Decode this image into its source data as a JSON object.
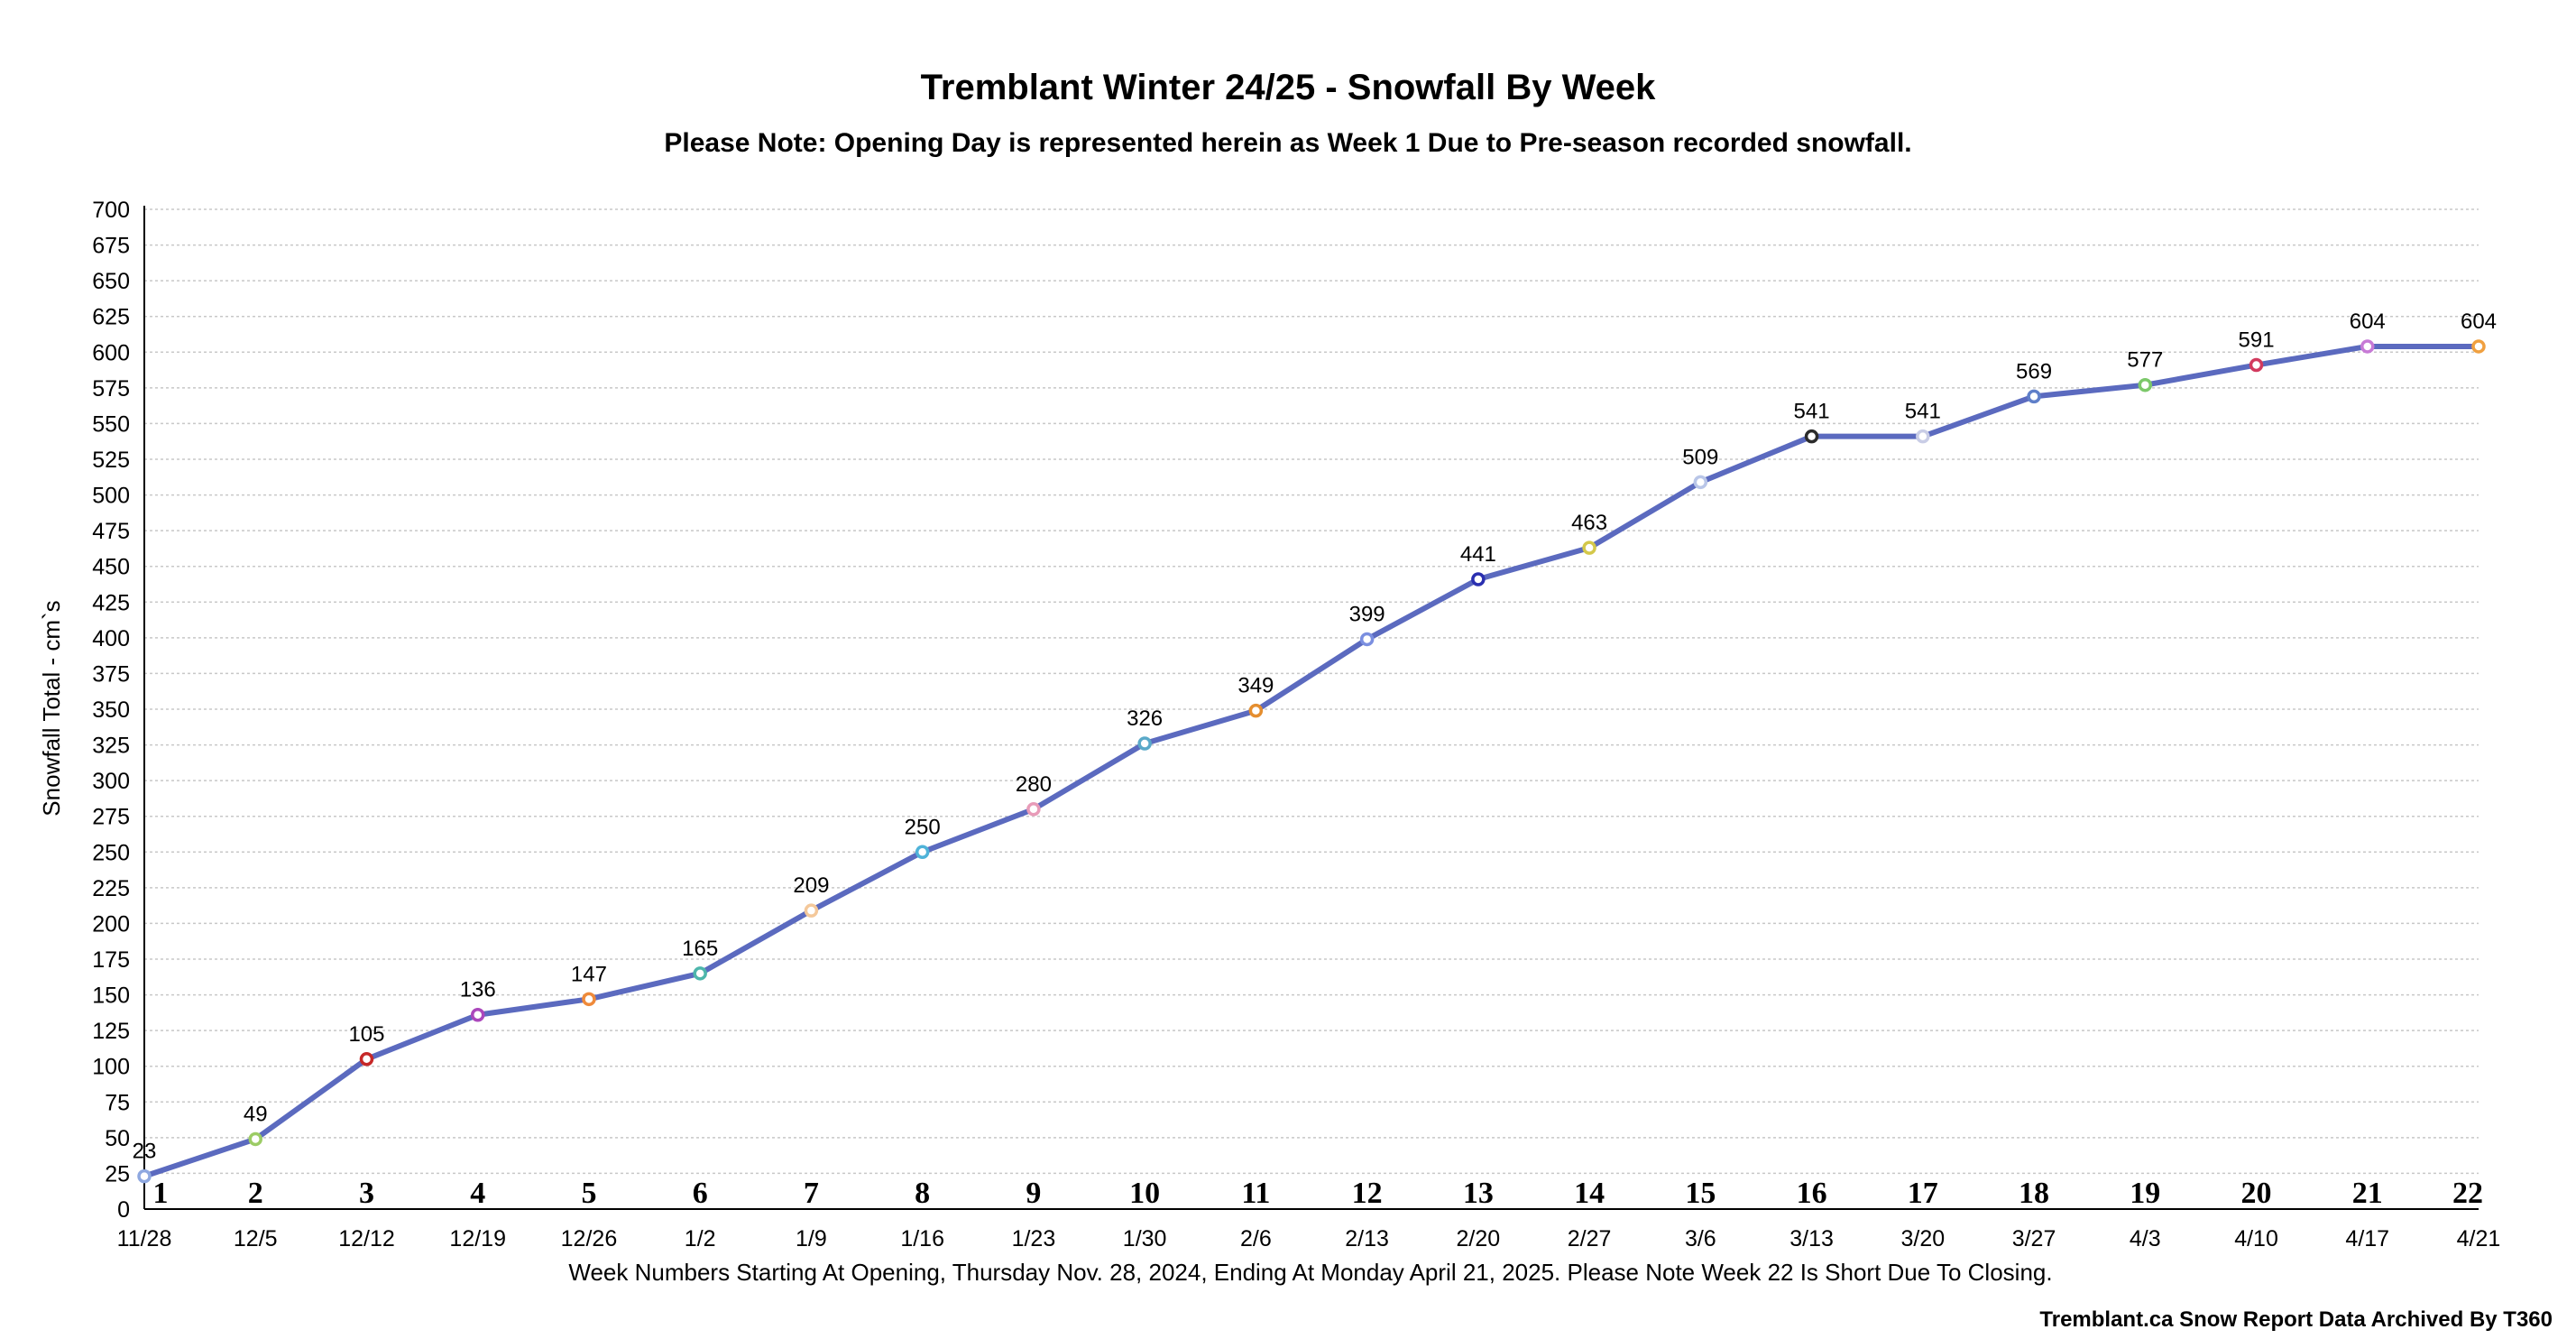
{
  "chart_data": {
    "type": "line",
    "title": "Tremblant Winter 24/25 - Snowfall By Week",
    "subtitle": "Please Note: Opening Day is represented herein as Week 1 Due to Pre-season recorded snowfall.",
    "ylabel": "Snowfall Total - cm`s",
    "xlabel": "Week Numbers Starting At Opening, Thursday Nov. 28, 2024, Ending At Monday April 21, 2025. Please Note Week 22 Is Short Due To Closing.",
    "source": "Tremblant.ca Snow Report Data Archived By T360",
    "ylim": [
      0,
      700
    ],
    "ytick_step": 25,
    "grid": true,
    "week_numbers": [
      "1",
      "2",
      "3",
      "4",
      "5",
      "6",
      "7",
      "8",
      "9",
      "10",
      "11",
      "12",
      "13",
      "14",
      "15",
      "16",
      "17",
      "18",
      "19",
      "20",
      "21",
      "22"
    ],
    "categories": [
      "11/28",
      "12/5",
      "12/12",
      "12/19",
      "12/26",
      "1/2",
      "1/9",
      "1/16",
      "1/23",
      "1/30",
      "2/6",
      "2/13",
      "2/20",
      "2/27",
      "3/6",
      "3/13",
      "3/20",
      "3/27",
      "4/3",
      "4/10",
      "4/17",
      "4/21"
    ],
    "series": [
      {
        "name": "Snowfall Total",
        "color": "#5b6abf",
        "values": [
          23,
          49,
          105,
          136,
          147,
          165,
          209,
          250,
          280,
          326,
          349,
          399,
          441,
          463,
          509,
          541,
          541,
          569,
          577,
          591,
          604,
          604
        ],
        "marker_colors": [
          "#8fa8e0",
          "#9ccc65",
          "#c62828",
          "#ab47bc",
          "#ef8a3a",
          "#4db6ac",
          "#f4c89a",
          "#4fb3d9",
          "#e89bb8",
          "#5aa9c9",
          "#e58e2f",
          "#7b8fe0",
          "#2a2fb0",
          "#d4c84a",
          "#b9c6e8",
          "#2b2b2b",
          "#c9cde6",
          "#5f7fc9",
          "#7cc86a",
          "#d23a5e",
          "#c77ad6",
          "#f0a040"
        ]
      }
    ]
  }
}
